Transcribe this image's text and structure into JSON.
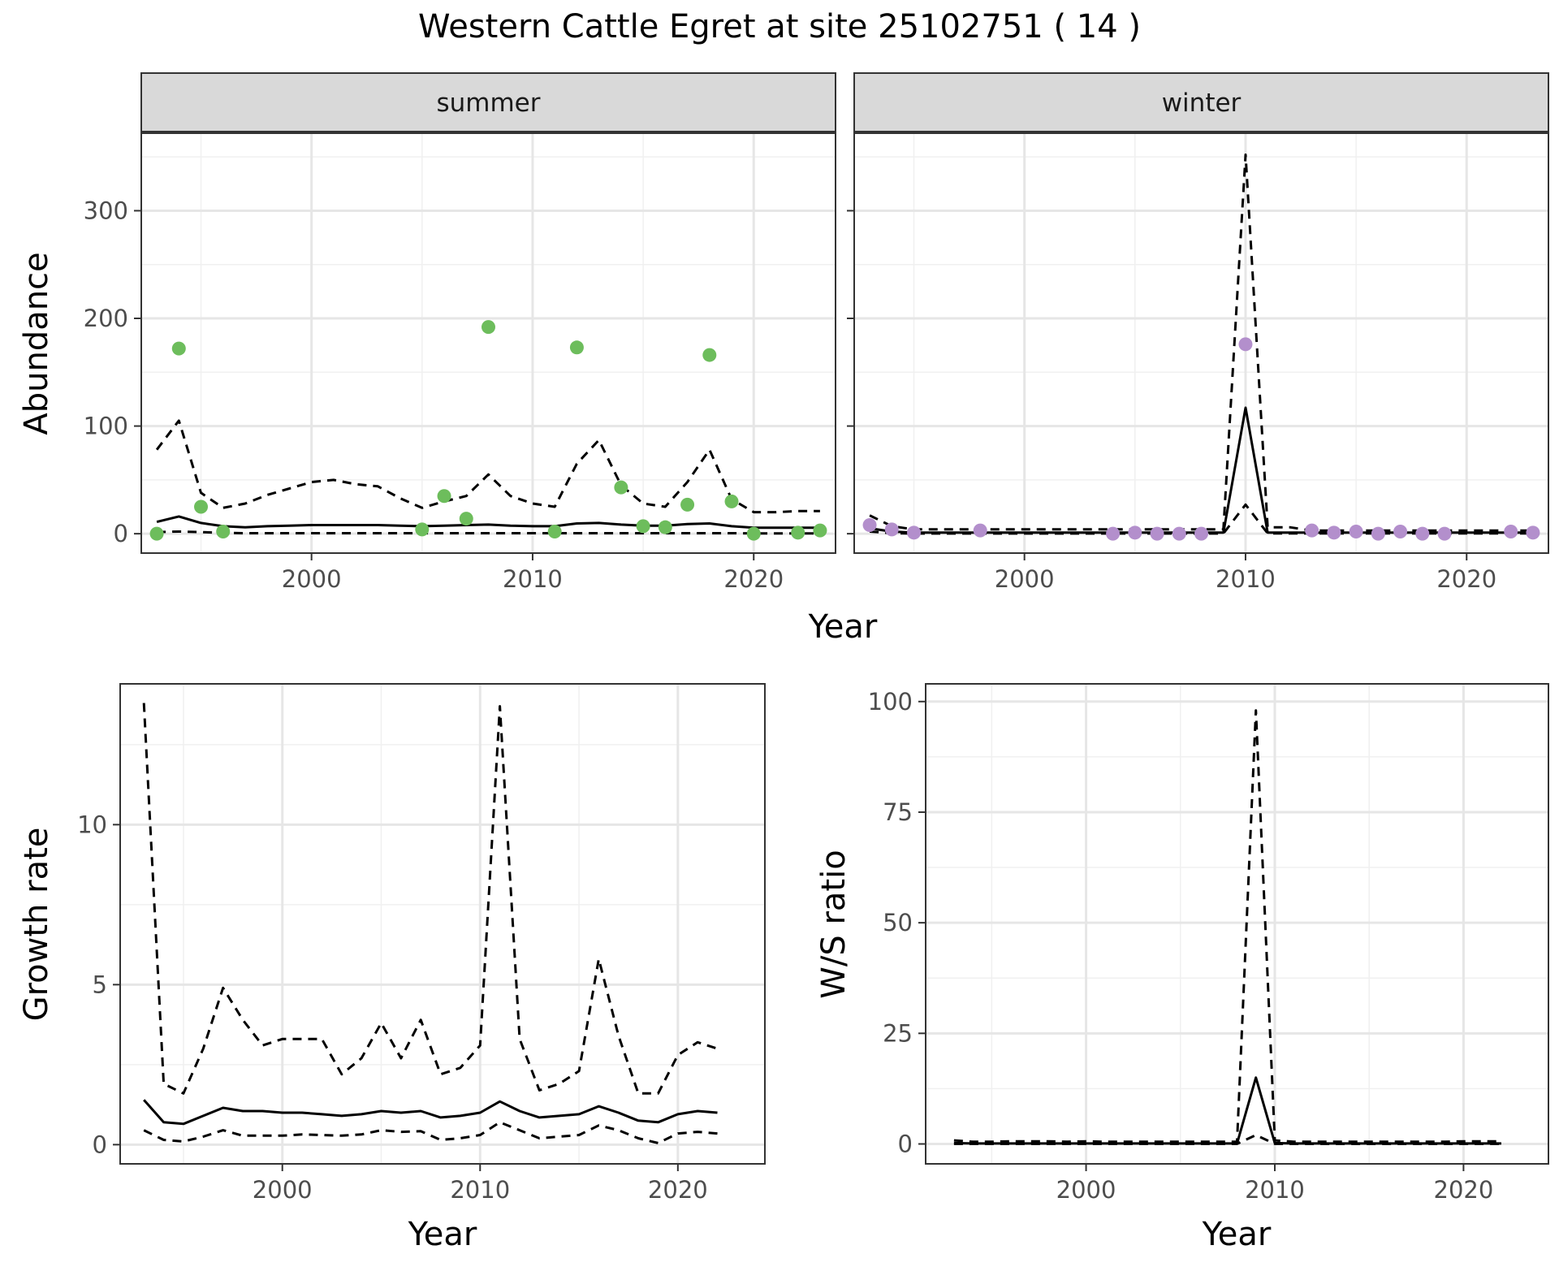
{
  "figure": {
    "title": "Western Cattle Egret at site 25102751 ( 14 )"
  },
  "chart_data": [
    {
      "type": "line",
      "panel": "summer",
      "strip_label": "summer",
      "xlabel": "Year",
      "ylabel": "Abundance",
      "xlim": [
        1992.3,
        2023.7
      ],
      "ylim": [
        -18,
        372
      ],
      "xticks": [
        2000,
        2010,
        2020
      ],
      "yticks": [
        0,
        100,
        200,
        300
      ],
      "grid": true,
      "point_color": "#6dbd5c",
      "series": [
        {
          "style": "solid",
          "x": [
            1993,
            1994,
            1995,
            1996,
            1997,
            1998,
            1999,
            2000,
            2001,
            2002,
            2003,
            2004,
            2005,
            2006,
            2007,
            2008,
            2009,
            2010,
            2011,
            2012,
            2013,
            2014,
            2015,
            2016,
            2017,
            2018,
            2019,
            2020,
            2021,
            2022,
            2023
          ],
          "values": [
            11,
            16,
            10,
            7,
            6,
            7,
            7.5,
            8,
            8,
            8,
            8,
            7.5,
            7,
            7.5,
            8,
            8.5,
            7.5,
            7,
            7,
            9.5,
            10,
            8.5,
            7.5,
            7.5,
            9,
            9.5,
            7,
            5.5,
            5.5,
            5.5,
            5.5
          ]
        },
        {
          "style": "dashed",
          "x": [
            1993,
            1994,
            1995,
            1996,
            1997,
            1998,
            1999,
            2000,
            2001,
            2002,
            2003,
            2004,
            2005,
            2006,
            2007,
            2008,
            2009,
            2010,
            2011,
            2012,
            2013,
            2014,
            2015,
            2016,
            2017,
            2018,
            2019,
            2020,
            2021,
            2022,
            2023
          ],
          "values": [
            78,
            105,
            38,
            24,
            28,
            36,
            42,
            48,
            50,
            46,
            44,
            33,
            24,
            30,
            35,
            55,
            35,
            28,
            25,
            65,
            87,
            45,
            28,
            25,
            48,
            78,
            32,
            20,
            20,
            21,
            21
          ]
        },
        {
          "style": "dashed",
          "x": [
            1993,
            1994,
            1995,
            1996,
            1997,
            1998,
            1999,
            2000,
            2001,
            2002,
            2003,
            2004,
            2005,
            2006,
            2007,
            2008,
            2009,
            2010,
            2011,
            2012,
            2013,
            2014,
            2015,
            2016,
            2017,
            2018,
            2019,
            2020,
            2021,
            2022,
            2023
          ],
          "values": [
            1.5,
            2,
            1.5,
            0.8,
            0.5,
            0.5,
            0.5,
            0.5,
            0.5,
            0.5,
            0.5,
            0.5,
            0.5,
            0.5,
            0.5,
            0.5,
            0.5,
            0.5,
            0.5,
            0.5,
            0.5,
            0.5,
            0.5,
            0.5,
            0.5,
            0.5,
            0.5,
            0.3,
            0.3,
            0.3,
            0.3
          ]
        }
      ],
      "points": {
        "x": [
          1993,
          1994,
          1995,
          1996,
          2005,
          2006,
          2007,
          2008,
          2011,
          2012,
          2014,
          2015,
          2016,
          2017,
          2018,
          2019,
          2020,
          2022,
          2023
        ],
        "values": [
          0,
          172,
          25,
          2,
          4,
          35,
          14,
          192,
          2,
          173,
          43,
          7,
          6,
          27,
          166,
          30,
          0,
          1,
          3
        ]
      }
    },
    {
      "type": "line",
      "panel": "winter",
      "strip_label": "winter",
      "xlabel": "Year",
      "ylabel": "Abundance",
      "xlim": [
        1992.3,
        2023.7
      ],
      "ylim": [
        -18,
        372
      ],
      "xticks": [
        2000,
        2010,
        2020
      ],
      "yticks": [
        0,
        100,
        200,
        300
      ],
      "grid": true,
      "point_color": "#b38fcc",
      "series": [
        {
          "style": "solid",
          "x": [
            1993,
            1994,
            1995,
            1996,
            1997,
            1998,
            1999,
            2000,
            2001,
            2002,
            2003,
            2004,
            2005,
            2006,
            2007,
            2008,
            2009,
            2010,
            2011,
            2012,
            2013,
            2014,
            2015,
            2016,
            2017,
            2018,
            2019,
            2020,
            2021,
            2022,
            2023
          ],
          "values": [
            5,
            2,
            1,
            1,
            1,
            1,
            1,
            1,
            1,
            1,
            1,
            1,
            1,
            1,
            1,
            1,
            1,
            117,
            1,
            1,
            1,
            1,
            1,
            1,
            1,
            1,
            1,
            1,
            1,
            1,
            1
          ]
        },
        {
          "style": "dashed",
          "x": [
            1993,
            1994,
            1995,
            1996,
            1997,
            1998,
            1999,
            2000,
            2001,
            2002,
            2003,
            2004,
            2005,
            2006,
            2007,
            2008,
            2009,
            2010,
            2011,
            2012,
            2013,
            2014,
            2015,
            2016,
            2017,
            2018,
            2019,
            2020,
            2021,
            2022,
            2023
          ],
          "values": [
            17,
            7,
            4,
            4,
            4,
            4,
            4,
            4,
            4,
            4,
            4,
            4,
            4,
            4,
            4,
            4,
            4,
            352,
            6,
            6,
            3,
            3,
            3,
            3,
            3,
            3,
            3,
            3,
            3,
            3,
            3
          ]
        },
        {
          "style": "dashed",
          "x": [
            1993,
            1994,
            1995,
            1996,
            1997,
            1998,
            1999,
            2000,
            2001,
            2002,
            2003,
            2004,
            2005,
            2006,
            2007,
            2008,
            2009,
            2010,
            2011,
            2012,
            2013,
            2014,
            2015,
            2016,
            2017,
            2018,
            2019,
            2020,
            2021,
            2022,
            2023
          ],
          "values": [
            2,
            0.5,
            0.2,
            0.2,
            0.2,
            0.2,
            0.2,
            0.2,
            0.2,
            0.2,
            0.2,
            0.2,
            0.2,
            0.2,
            0.2,
            0.2,
            0.2,
            27,
            0.3,
            0.3,
            0.3,
            0.3,
            0.3,
            0.3,
            0.3,
            0.3,
            0.3,
            0.3,
            0.3,
            0.3,
            0.3
          ]
        }
      ],
      "points": {
        "x": [
          1993,
          1994,
          1995,
          1998,
          2004,
          2005,
          2006,
          2007,
          2008,
          2010,
          2013,
          2014,
          2015,
          2016,
          2017,
          2018,
          2019,
          2022,
          2023
        ],
        "values": [
          8,
          4,
          1,
          3,
          0,
          1,
          0,
          0,
          0,
          176,
          3,
          1,
          2,
          0,
          2,
          0,
          0,
          2,
          1
        ]
      }
    },
    {
      "type": "line",
      "panel": "growth",
      "xlabel": "Year",
      "ylabel": "Growth rate",
      "xlim": [
        1991.8,
        2024.4
      ],
      "ylim": [
        -0.6,
        14.4
      ],
      "xticks": [
        2000,
        2010,
        2020
      ],
      "yticks": [
        0,
        5,
        10
      ],
      "grid": true,
      "series": [
        {
          "style": "solid",
          "x": [
            1993,
            1994,
            1995,
            1996,
            1997,
            1998,
            1999,
            2000,
            2001,
            2002,
            2003,
            2004,
            2005,
            2006,
            2007,
            2008,
            2009,
            2010,
            2011,
            2012,
            2013,
            2014,
            2015,
            2016,
            2017,
            2018,
            2019,
            2020,
            2021,
            2022
          ],
          "values": [
            1.4,
            0.7,
            0.65,
            0.9,
            1.15,
            1.05,
            1.05,
            1.0,
            1.0,
            0.95,
            0.9,
            0.95,
            1.05,
            1.0,
            1.05,
            0.85,
            0.9,
            1.0,
            1.35,
            1.05,
            0.85,
            0.9,
            0.95,
            1.2,
            1.0,
            0.75,
            0.7,
            0.95,
            1.05,
            1.0
          ]
        },
        {
          "style": "dashed",
          "x": [
            1993,
            1994,
            1995,
            1996,
            1997,
            1998,
            1999,
            2000,
            2001,
            2002,
            2003,
            2004,
            2005,
            2006,
            2007,
            2008,
            2009,
            2010,
            2011,
            2012,
            2013,
            2014,
            2015,
            2016,
            2017,
            2018,
            2019,
            2020,
            2021,
            2022
          ],
          "values": [
            13.8,
            1.9,
            1.6,
            3.0,
            4.9,
            3.9,
            3.1,
            3.3,
            3.3,
            3.3,
            2.2,
            2.7,
            3.8,
            2.7,
            3.9,
            2.2,
            2.4,
            3.1,
            13.7,
            3.3,
            1.7,
            1.9,
            2.3,
            5.8,
            3.4,
            1.6,
            1.6,
            2.8,
            3.2,
            3.0
          ]
        },
        {
          "style": "dashed",
          "x": [
            1993,
            1994,
            1995,
            1996,
            1997,
            1998,
            1999,
            2000,
            2001,
            2002,
            2003,
            2004,
            2005,
            2006,
            2007,
            2008,
            2009,
            2010,
            2011,
            2012,
            2013,
            2014,
            2015,
            2016,
            2017,
            2018,
            2019,
            2020,
            2021,
            2022
          ],
          "values": [
            0.45,
            0.15,
            0.1,
            0.25,
            0.45,
            0.28,
            0.28,
            0.28,
            0.32,
            0.3,
            0.28,
            0.32,
            0.45,
            0.4,
            0.42,
            0.15,
            0.2,
            0.3,
            0.7,
            0.45,
            0.2,
            0.25,
            0.3,
            0.6,
            0.45,
            0.2,
            0.05,
            0.35,
            0.4,
            0.35
          ]
        }
      ]
    },
    {
      "type": "line",
      "panel": "ratio",
      "xlabel": "Year",
      "ylabel": "W/S ratio",
      "xlim": [
        1991.5,
        2024.5
      ],
      "ylim": [
        -4.5,
        104
      ],
      "xticks": [
        2000,
        2010,
        2020
      ],
      "yticks": [
        0,
        25,
        50,
        75,
        100
      ],
      "grid": true,
      "series": [
        {
          "style": "solid",
          "x": [
            1993,
            1994,
            1995,
            1996,
            1997,
            1998,
            1999,
            2000,
            2001,
            2002,
            2003,
            2004,
            2005,
            2006,
            2007,
            2008,
            2009,
            2010,
            2011,
            2012,
            2013,
            2014,
            2015,
            2016,
            2017,
            2018,
            2019,
            2020,
            2021,
            2022
          ],
          "values": [
            0.2,
            0.1,
            0.1,
            0.1,
            0.1,
            0.1,
            0.1,
            0.1,
            0.1,
            0.1,
            0.1,
            0.1,
            0.1,
            0.1,
            0.1,
            0.1,
            15,
            0.2,
            0.1,
            0.1,
            0.1,
            0.1,
            0.1,
            0.1,
            0.1,
            0.1,
            0.1,
            0.1,
            0.1,
            0.1
          ]
        },
        {
          "style": "dashed",
          "x": [
            1993,
            1994,
            1995,
            1996,
            1997,
            1998,
            1999,
            2000,
            2001,
            2002,
            2003,
            2004,
            2005,
            2006,
            2007,
            2008,
            2009,
            2010,
            2011,
            2012,
            2013,
            2014,
            2015,
            2016,
            2017,
            2018,
            2019,
            2020,
            2021,
            2022
          ],
          "values": [
            0.8,
            0.5,
            0.5,
            0.6,
            0.6,
            0.6,
            0.5,
            0.6,
            0.5,
            0.5,
            0.5,
            0.5,
            0.5,
            0.5,
            0.5,
            0.5,
            98,
            0.8,
            0.5,
            0.5,
            0.5,
            0.5,
            0.5,
            0.5,
            0.5,
            0.5,
            0.5,
            0.6,
            0.6,
            0.6
          ]
        },
        {
          "style": "dashed",
          "x": [
            1993,
            1994,
            1995,
            1996,
            1997,
            1998,
            1999,
            2000,
            2001,
            2002,
            2003,
            2004,
            2005,
            2006,
            2007,
            2008,
            2009,
            2010,
            2011,
            2012,
            2013,
            2014,
            2015,
            2016,
            2017,
            2018,
            2019,
            2020,
            2021,
            2022
          ],
          "values": [
            0.02,
            0.02,
            0.02,
            0.02,
            0.02,
            0.02,
            0.02,
            0.02,
            0.02,
            0.02,
            0.02,
            0.02,
            0.02,
            0.02,
            0.02,
            0.02,
            2,
            0.02,
            0.02,
            0.02,
            0.02,
            0.02,
            0.02,
            0.02,
            0.02,
            0.02,
            0.02,
            0.02,
            0.02,
            0.02
          ]
        }
      ]
    }
  ]
}
